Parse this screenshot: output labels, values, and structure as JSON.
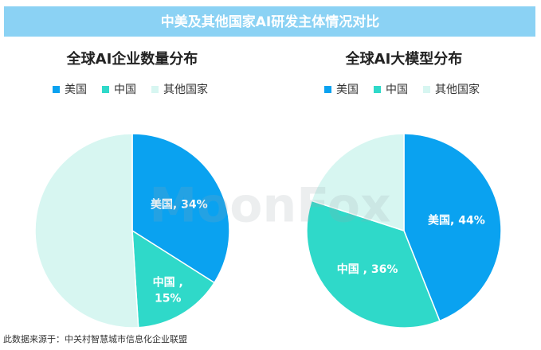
{
  "banner": "中美及其他国家AI研发主体情况对比",
  "watermark": "MoonFox",
  "source": "此数据来源于：中关村智慧城市信息化企业联盟",
  "chart_data": [
    {
      "type": "pie",
      "title": "全球AI企业数量分布",
      "categories": [
        "美国",
        "中国",
        "其他国家"
      ],
      "values": [
        34,
        15,
        51
      ],
      "value_labels": [
        "美国, 34%",
        "中国 , 15%",
        null
      ],
      "colors": [
        "#0aa2f0",
        "#2fd9c9",
        "#d7f6f1"
      ]
    },
    {
      "type": "pie",
      "title": "全球AI大模型分布",
      "categories": [
        "美国",
        "中国",
        "其他国家"
      ],
      "values": [
        44,
        36,
        20
      ],
      "value_labels": [
        "美国, 44%",
        "中国 , 36%",
        null
      ],
      "colors": [
        "#0aa2f0",
        "#2fd9c9",
        "#d7f6f1"
      ]
    }
  ]
}
